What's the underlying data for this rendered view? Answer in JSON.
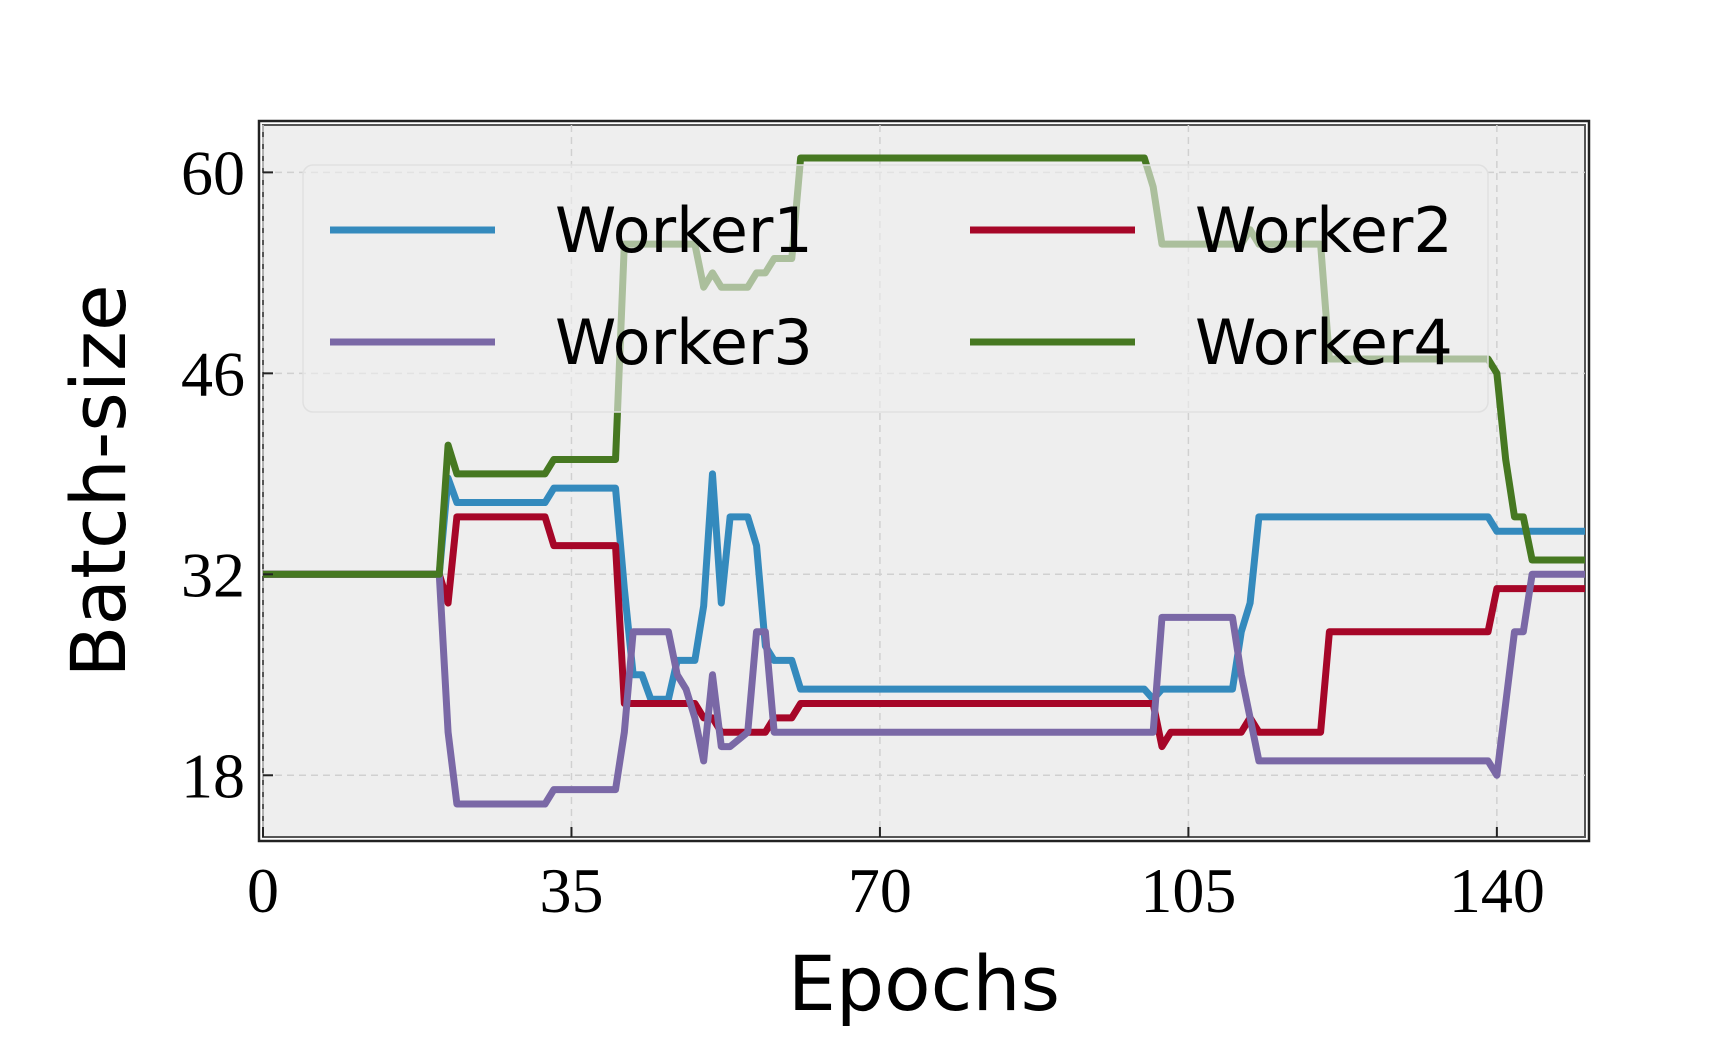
{
  "chart_data": {
    "type": "line",
    "xlabel": "Epochs",
    "ylabel": "Batch-size",
    "x": [
      0,
      20,
      21,
      22,
      32,
      33,
      40,
      41,
      42,
      43,
      44,
      46,
      47,
      48,
      49,
      50,
      51,
      52,
      53,
      55,
      56,
      57,
      58,
      60,
      61,
      100,
      101,
      102,
      103,
      110,
      111,
      112,
      113,
      120,
      121,
      139,
      140,
      141,
      142,
      143,
      144,
      150
    ],
    "series": [
      {
        "name": "Worker1",
        "color": "#348abd",
        "values": [
          32,
          32,
          38.7,
          37,
          37,
          38,
          38,
          31,
          25,
          25,
          23.3,
          23.3,
          26,
          26,
          26,
          29.8,
          39,
          30,
          36,
          36,
          34,
          27,
          26,
          26,
          24,
          24,
          23.3,
          24,
          24,
          24,
          28,
          30,
          36,
          36,
          36,
          36,
          35,
          35,
          35,
          35,
          35,
          35
        ]
      },
      {
        "name": "Worker2",
        "color": "#a60628",
        "values": [
          32,
          32,
          30,
          36,
          36,
          34,
          34,
          23,
          23,
          23,
          23,
          23,
          23,
          23,
          23,
          22,
          22,
          21,
          21,
          21,
          21,
          21,
          22,
          22,
          23,
          23,
          23,
          20,
          21,
          21,
          21,
          22,
          21,
          21,
          28,
          28,
          31,
          31,
          31,
          31,
          31,
          31
        ]
      },
      {
        "name": "Worker3",
        "color": "#7a68a6",
        "values": [
          32,
          32,
          21,
          16,
          16,
          17,
          17,
          21,
          28,
          28,
          28,
          28,
          25,
          24,
          22,
          19,
          25,
          20,
          20,
          21,
          28,
          28,
          21,
          21,
          21,
          21,
          21,
          29,
          29,
          29,
          25,
          22,
          19,
          19,
          19,
          19,
          18,
          23,
          28,
          28,
          32,
          32
        ]
      },
      {
        "name": "Worker4",
        "color": "#467821",
        "values": [
          32,
          32,
          41,
          39,
          39,
          40,
          40,
          55,
          55,
          55,
          55,
          55,
          55,
          55,
          55,
          52,
          53,
          52,
          52,
          52,
          53,
          53,
          54,
          54,
          61,
          61,
          59,
          55,
          55,
          55,
          55,
          56,
          55,
          55,
          47,
          47,
          46,
          40,
          36,
          36,
          33,
          33
        ]
      }
    ],
    "xlim": [
      0,
      150
    ],
    "xticks": [
      0,
      35,
      70,
      105,
      140
    ],
    "ylim": [
      13.7,
      63.3
    ],
    "yticks": [
      18,
      32,
      46,
      60
    ],
    "grid": true,
    "legend_loc": "upper",
    "legend_columns": 2
  }
}
